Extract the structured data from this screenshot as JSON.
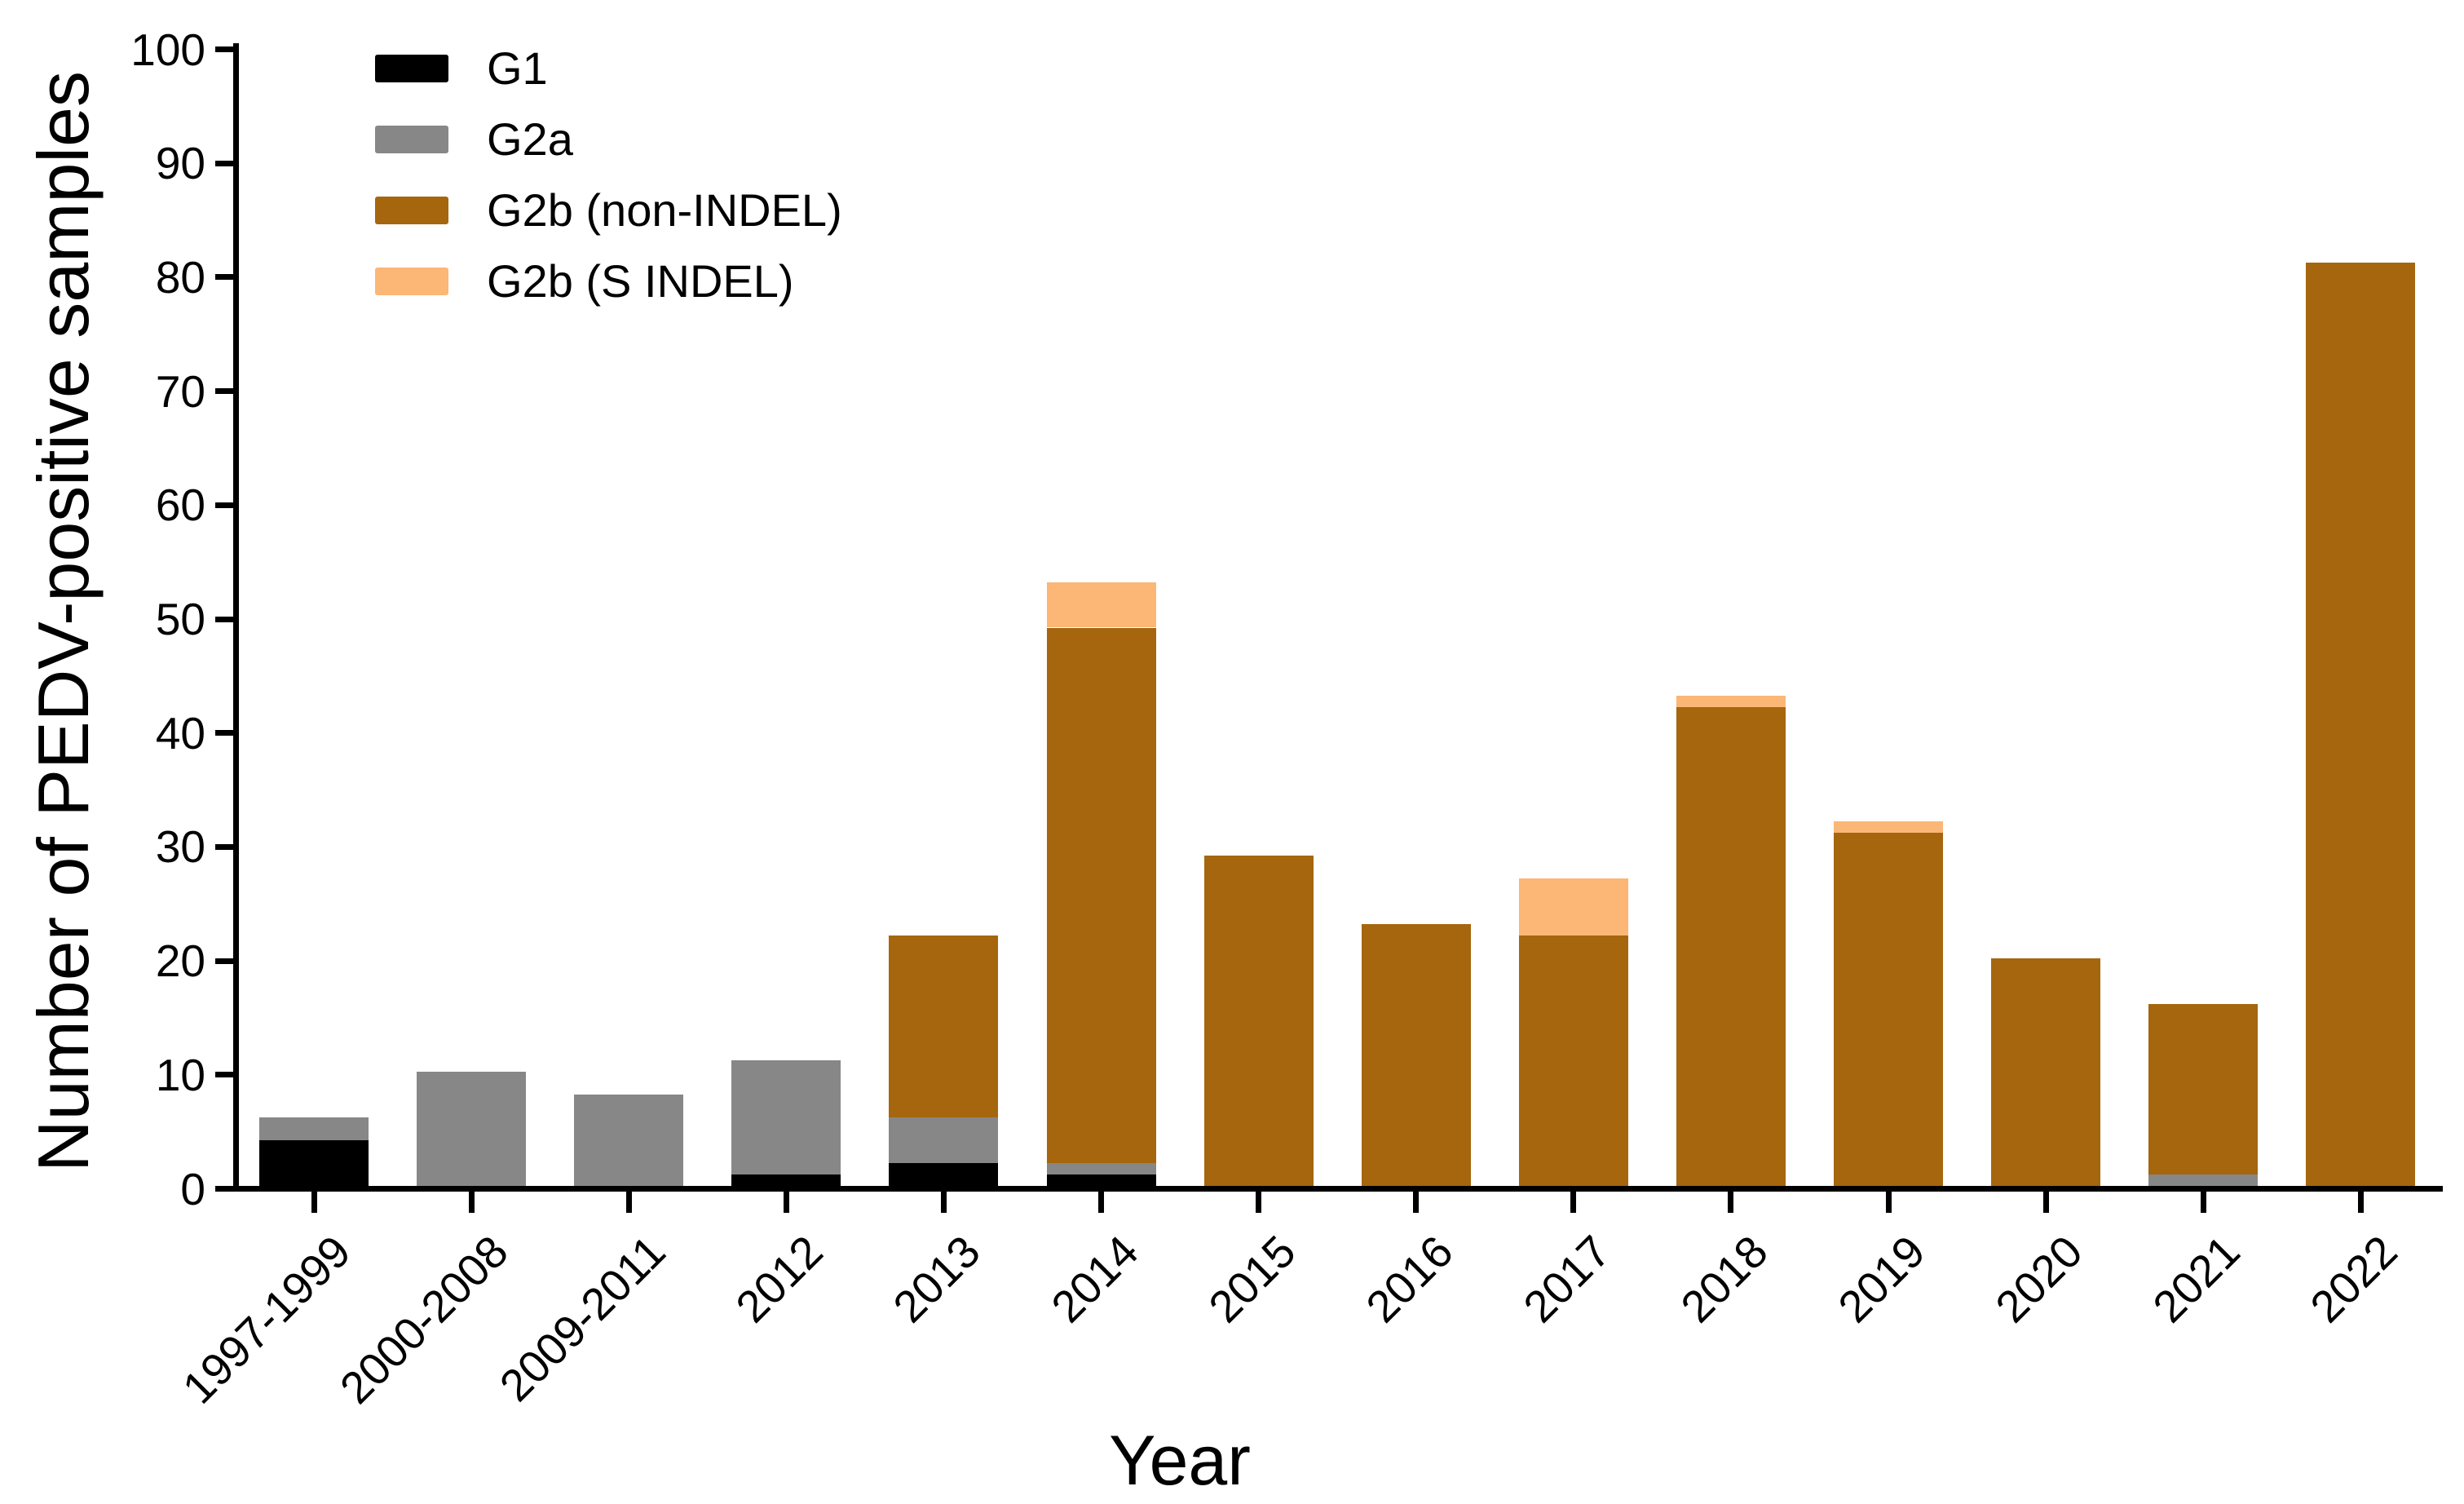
{
  "figure": {
    "y_axis_title": "Number of PEDV-positive samples",
    "x_axis_title": "Year"
  },
  "chart_data": {
    "type": "bar",
    "stacked": true,
    "title": "",
    "xlabel": "Year",
    "ylabel": "Number of PEDV-positive samples",
    "ylim": [
      0,
      100
    ],
    "y_ticks": [
      0,
      10,
      20,
      30,
      40,
      50,
      60,
      70,
      80,
      90,
      100
    ],
    "grid": false,
    "legend_position": "top-left",
    "categories": [
      "1997-1999",
      "2000-2008",
      "2009-2011",
      "2012",
      "2013",
      "2014",
      "2015",
      "2016",
      "2017",
      "2018",
      "2019",
      "2020",
      "2021",
      "2022"
    ],
    "series": [
      {
        "name": "G1",
        "color": "#000000",
        "values": [
          4,
          0,
          0,
          1,
          2,
          1,
          0,
          0,
          0,
          0,
          0,
          0,
          0,
          0
        ]
      },
      {
        "name": "G2a",
        "color": "#878787",
        "values": [
          2,
          10,
          8,
          10,
          4,
          1,
          0,
          0,
          0,
          0,
          0,
          0,
          1,
          0
        ]
      },
      {
        "name": "G2b (non-INDEL)",
        "color": "#A5660D",
        "values": [
          0,
          0,
          0,
          0,
          16,
          47,
          29,
          23,
          22,
          42,
          31,
          20,
          15,
          81
        ]
      },
      {
        "name": "G2b (S INDEL)",
        "color": "#FCB676",
        "values": [
          0,
          0,
          0,
          0,
          0,
          4,
          0,
          0,
          5,
          1,
          1,
          0,
          0,
          0
        ]
      }
    ],
    "totals": [
      6,
      10,
      8,
      11,
      22,
      53,
      29,
      23,
      27,
      43,
      32,
      20,
      16,
      81
    ]
  }
}
